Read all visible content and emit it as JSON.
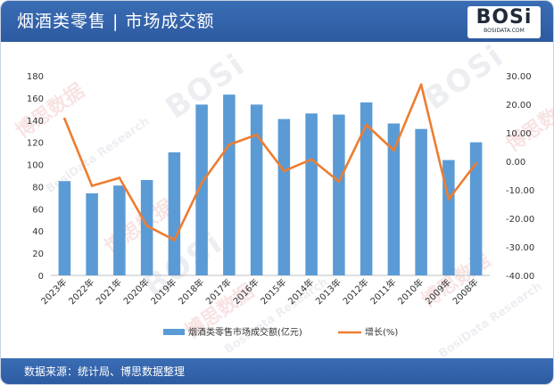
{
  "header": {
    "title": "烟酒类零售 | 市场成交额"
  },
  "logo": {
    "text": "BOSi",
    "sub": "BOSIDATA.COM"
  },
  "watermark": {
    "brand": "BOSi",
    "cn": "博思数据",
    "en": "BosiData Research"
  },
  "footer": {
    "source": "数据来源：统计局、博思数据整理"
  },
  "colors": {
    "bar": "#5b9bd5",
    "line": "#ed7d31",
    "header": "#2f5ea5"
  },
  "chart_data": {
    "type": "bar",
    "categories": [
      "2023年",
      "2022年",
      "2021年",
      "2020年",
      "2019年",
      "2018年",
      "2017年",
      "2016年",
      "2015年",
      "2014年",
      "2013年",
      "2012年",
      "2011年",
      "2010年",
      "2009年",
      "2008年"
    ],
    "series": [
      {
        "name": "烟酒类零售市场成交额(亿元)",
        "type": "bar",
        "axis": "left",
        "values": [
          85,
          74,
          81,
          86,
          111,
          154,
          163,
          154,
          141,
          146,
          145,
          156,
          137,
          132,
          104,
          120
        ]
      },
      {
        "name": "增长(%)",
        "type": "line",
        "axis": "right",
        "values": [
          14.9,
          -8.6,
          -5.8,
          -22.6,
          -27.6,
          -7.6,
          5.8,
          9.3,
          -3.4,
          0.7,
          -7.1,
          12.8,
          3.8,
          26.9,
          -13.3,
          -0.7
        ]
      }
    ],
    "left_axis": {
      "min": 0,
      "max": 180,
      "step": 20,
      "ticks": [
        "0",
        "20",
        "40",
        "60",
        "80",
        "100",
        "120",
        "140",
        "160",
        "180"
      ]
    },
    "right_axis": {
      "min": -40,
      "max": 30,
      "step": 10,
      "ticks": [
        "-40.00",
        "-30.00",
        "-20.00",
        "-10.00",
        "0.00",
        "10.00",
        "20.00",
        "30.00"
      ]
    },
    "legend_position": "bottom",
    "grid": false
  }
}
